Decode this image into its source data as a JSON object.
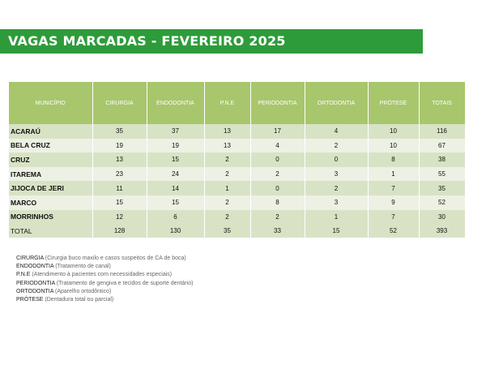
{
  "header": {
    "title": "VAGAS MARCADAS - FEVEREIRO 2025"
  },
  "table": {
    "columns": [
      "MUNICÍPIO",
      "CIRURGIA",
      "ENDODONTIA",
      "P.N.E",
      "PERIODONTIA",
      "ORTODONTIA",
      "PRÓTESE",
      "TOTAIS"
    ],
    "rows": [
      [
        "ACARAÚ",
        "35",
        "37",
        "13",
        "17",
        "4",
        "10",
        "116"
      ],
      [
        "BELA CRUZ",
        "19",
        "19",
        "13",
        "4",
        "2",
        "10",
        "67"
      ],
      [
        "CRUZ",
        "13",
        "15",
        "2",
        "0",
        "0",
        "8",
        "38"
      ],
      [
        "ITAREMA",
        "23",
        "24",
        "2",
        "2",
        "3",
        "1",
        "55"
      ],
      [
        "JIJOCA DE JERI",
        "11",
        "14",
        "1",
        "0",
        "2",
        "7",
        "35"
      ],
      [
        "MARCO",
        "15",
        "15",
        "2",
        "8",
        "3",
        "9",
        "52"
      ],
      [
        "MORRINHOS",
        "12",
        "6",
        "2",
        "2",
        "1",
        "7",
        "30"
      ]
    ],
    "total": [
      "TOTAL",
      "128",
      "130",
      "35",
      "33",
      "15",
      "52",
      "393"
    ]
  },
  "legend": [
    {
      "term": "CIRURGIA",
      "desc": "(Cirurgia buco maxilo e casos suspeitos de CA de boca)"
    },
    {
      "term": "ENDODONTIA",
      "desc": "(Tratamento de canal)"
    },
    {
      "term": "P.N.E",
      "desc": "(Atendimento à pacientes com necessidades especiais)"
    },
    {
      "term": "PERIODONTIA",
      "desc": "(Tratamento de gengiva e tecidos de suporte dentário)"
    },
    {
      "term": "ORTODONTIA",
      "desc": "(Aparelho ortodôntico)"
    },
    {
      "term": "PRÓTESE",
      "desc": "(Dentadura total ou parcial)"
    }
  ]
}
